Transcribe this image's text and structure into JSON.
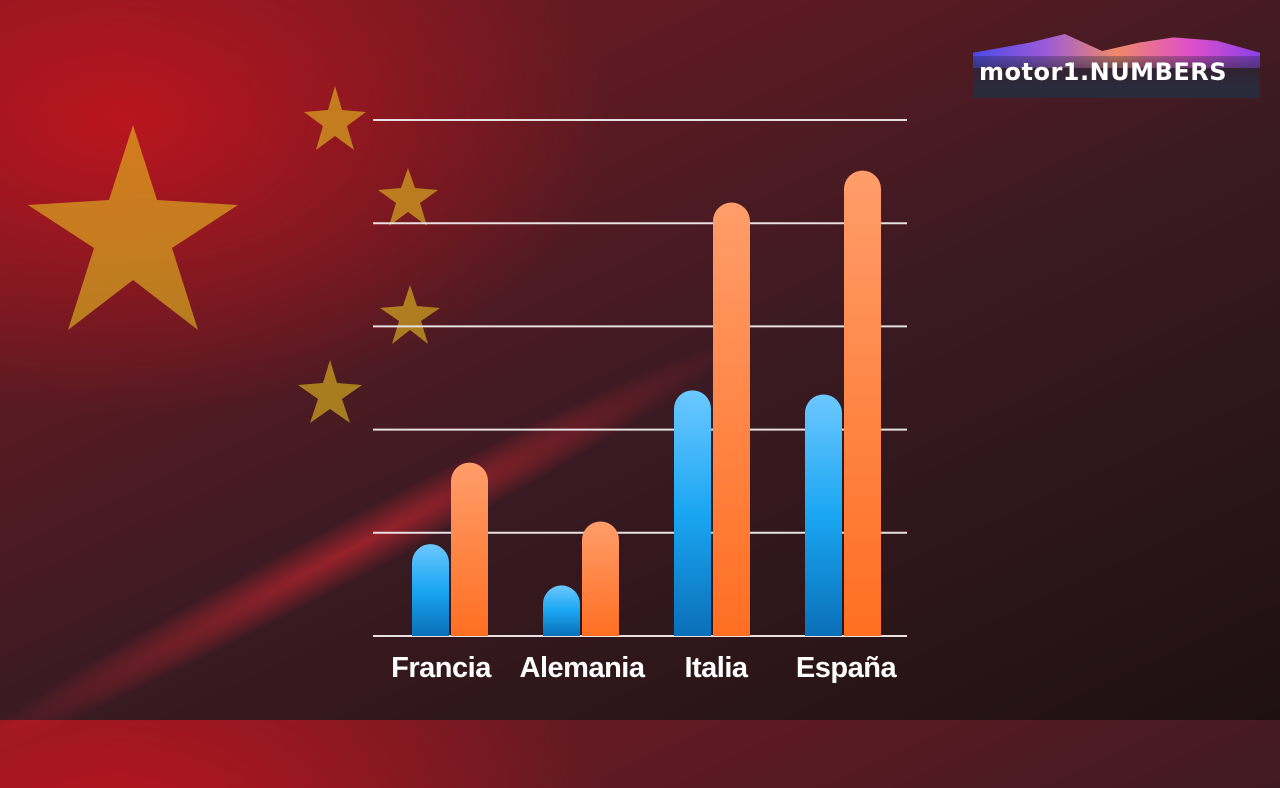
{
  "logo": {
    "text": "motor1.NUMBERS"
  },
  "chart_data": {
    "type": "bar",
    "categories": [
      "Francia",
      "Alemania",
      "Italia",
      "España"
    ],
    "series": [
      {
        "values": [
          0.89,
          0.49,
          2.38,
          2.34
        ],
        "color": "#1ea8f0"
      },
      {
        "values": [
          1.68,
          1.11,
          4.2,
          4.51
        ],
        "color": "#ff7a35"
      }
    ],
    "title": "",
    "xlabel": "",
    "ylabel": "",
    "ylim": [
      0,
      5
    ],
    "grid": true,
    "legend": "none"
  }
}
